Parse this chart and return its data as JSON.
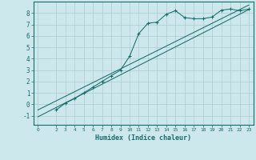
{
  "xlabel": "Humidex (Indice chaleur)",
  "bg_color": "#cce8ec",
  "line_color": "#1a6b6b",
  "grid_color": "#aacccc",
  "xlim": [
    -0.5,
    23.5
  ],
  "ylim": [
    -1.8,
    9.0
  ],
  "xticks": [
    0,
    2,
    3,
    4,
    5,
    6,
    7,
    8,
    9,
    10,
    11,
    12,
    13,
    14,
    15,
    16,
    17,
    18,
    19,
    20,
    21,
    22,
    23
  ],
  "yticks": [
    -1,
    0,
    1,
    2,
    3,
    4,
    5,
    6,
    7,
    8
  ],
  "data_x": [
    2,
    3,
    4,
    5,
    6,
    7,
    8,
    9,
    10,
    11,
    12,
    13,
    14,
    15,
    16,
    17,
    18,
    19,
    20,
    21,
    22,
    23
  ],
  "data_y": [
    -0.5,
    0.1,
    0.5,
    1.0,
    1.5,
    2.0,
    2.5,
    3.0,
    4.2,
    6.2,
    7.1,
    7.2,
    7.9,
    8.2,
    7.6,
    7.5,
    7.5,
    7.65,
    8.25,
    8.35,
    8.2,
    8.35
  ],
  "line1_x": [
    0,
    23
  ],
  "line1_y": [
    -1.1,
    8.3
  ],
  "line2_x": [
    0,
    23
  ],
  "line2_y": [
    -0.5,
    8.7
  ]
}
